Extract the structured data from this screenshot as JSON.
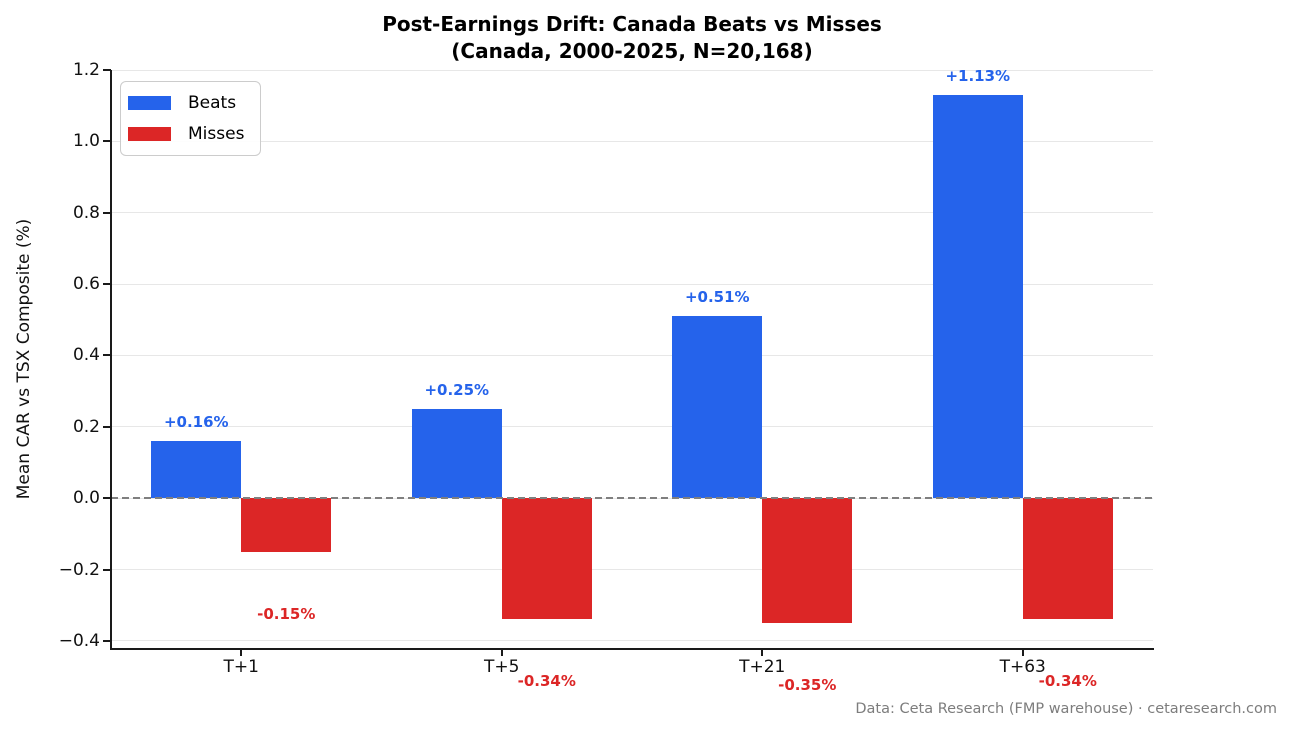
{
  "title": {
    "line1": "Post-Earnings Drift: Canada Beats vs Misses",
    "line2": "(Canada, 2000-2025, N=20,168)"
  },
  "y_axis_label": "Mean CAR vs TSX Composite (%)",
  "footer": "Data: Ceta Research (FMP warehouse) · cetaresearch.com",
  "legend": {
    "items": [
      {
        "label": "Beats",
        "color": "#2563eb"
      },
      {
        "label": "Misses",
        "color": "#dc2626"
      }
    ]
  },
  "colors": {
    "beats": "#2563eb",
    "misses": "#dc2626",
    "gridline": "#e7e7e7",
    "zero_line": "#7f7f7f",
    "axis": "#1a1a1a",
    "footer_text": "#7d7d7d"
  },
  "chart_data": {
    "type": "bar",
    "title": "Post-Earnings Drift: Canada Beats vs Misses (Canada, 2000-2025, N=20,168)",
    "xlabel": "",
    "ylabel": "Mean CAR vs TSX Composite (%)",
    "categories": [
      "T+1",
      "T+5",
      "T+21",
      "T+63"
    ],
    "series": [
      {
        "name": "Beats",
        "color": "#2563eb",
        "values": [
          0.16,
          0.25,
          0.51,
          1.13
        ],
        "labels": [
          "+0.16%",
          "+0.25%",
          "+0.51%",
          "+1.13%"
        ]
      },
      {
        "name": "Misses",
        "color": "#dc2626",
        "values": [
          -0.15,
          -0.34,
          -0.35,
          -0.34
        ],
        "labels": [
          "-0.15%",
          "-0.34%",
          "-0.35%",
          "-0.34%"
        ]
      }
    ],
    "yticks": [
      -0.4,
      -0.2,
      0.0,
      0.2,
      0.4,
      0.6,
      0.8,
      1.0,
      1.2
    ],
    "ylim": [
      -0.42,
      1.2
    ],
    "grid": true,
    "zero_line": "dashed",
    "legend_position": "upper left"
  }
}
